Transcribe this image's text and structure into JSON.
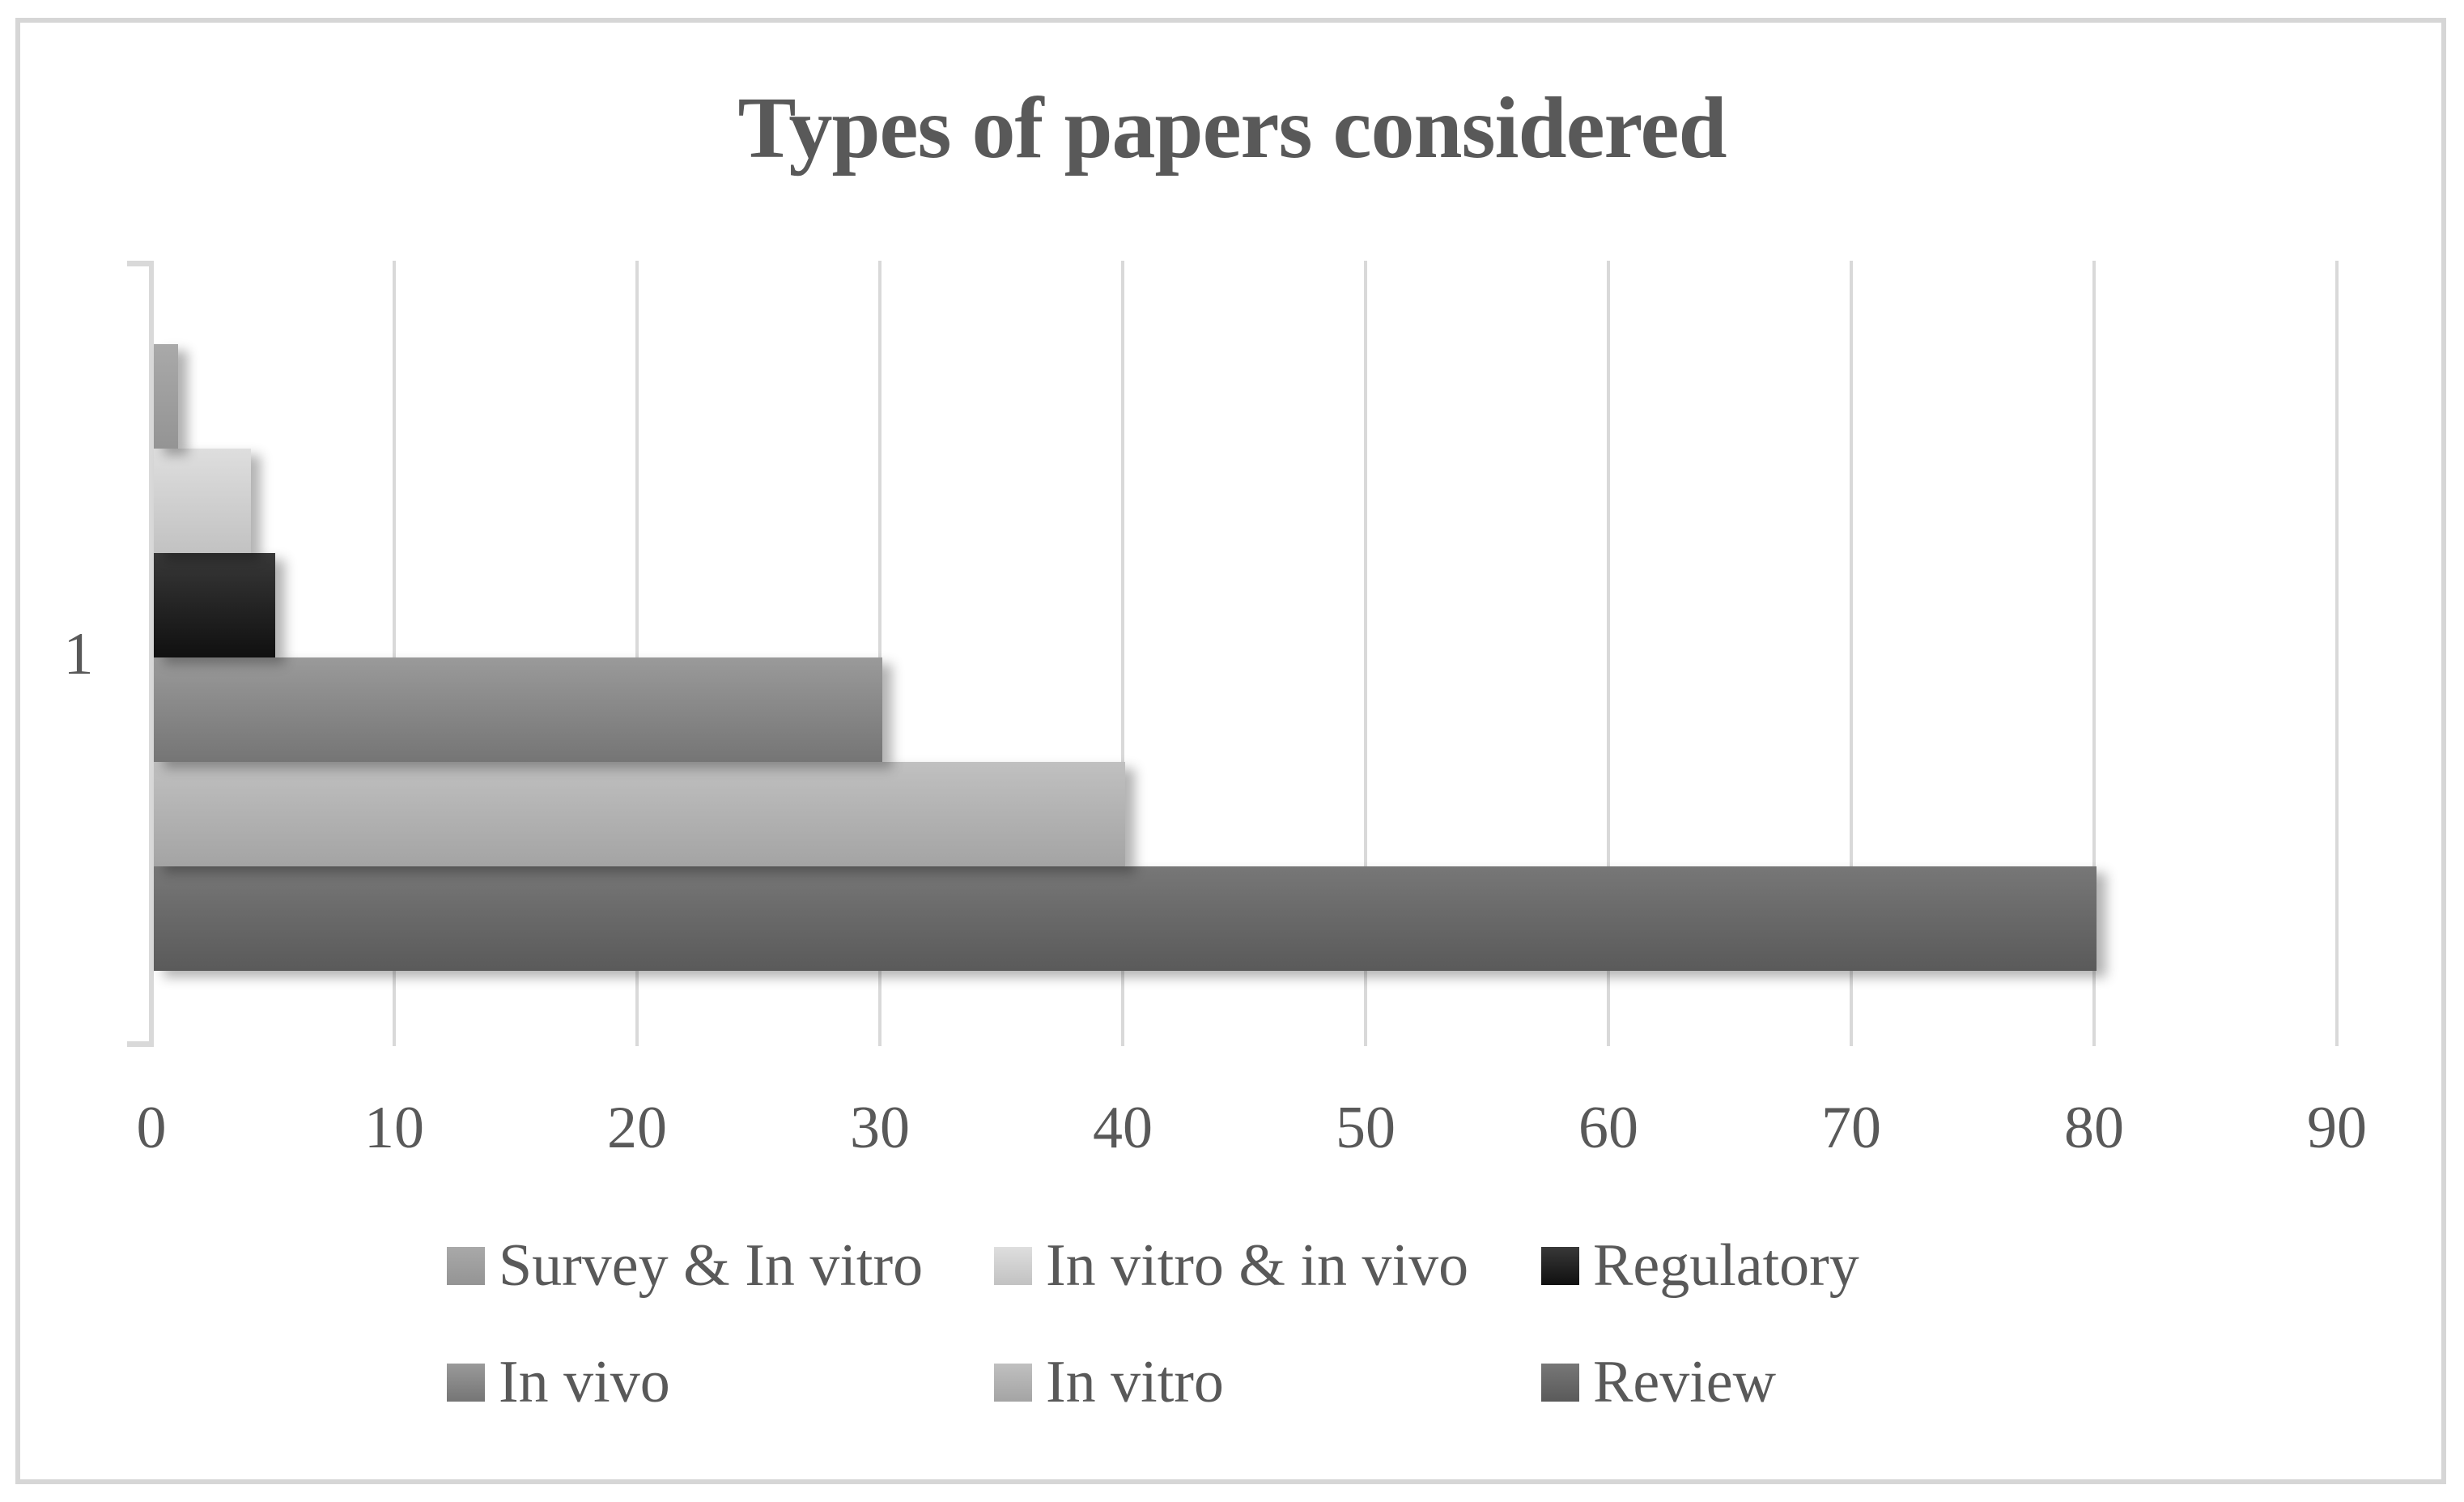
{
  "chart_data": {
    "type": "bar",
    "orientation": "horizontal",
    "title": "Types of papers considered",
    "categories": [
      "1"
    ],
    "series": [
      {
        "name": "Survey & In vitro",
        "value": 1,
        "color_top": "#a9a9a9",
        "color_bottom": "#949494"
      },
      {
        "name": "In vitro & in vivo",
        "value": 4,
        "color_top": "#dedede",
        "color_bottom": "#c2c2c2"
      },
      {
        "name": "Regulatory",
        "value": 5,
        "color_top": "#383838",
        "color_bottom": "#101010"
      },
      {
        "name": "In vivo",
        "value": 30,
        "color_top": "#9a9a9a",
        "color_bottom": "#757575"
      },
      {
        "name": "In vitro",
        "value": 40,
        "color_top": "#c0c0c0",
        "color_bottom": "#a4a4a4"
      },
      {
        "name": "Review",
        "value": 80,
        "color_top": "#777777",
        "color_bottom": "#5a5a5a"
      }
    ],
    "xlabel": "",
    "ylabel": "",
    "xlim": [
      0,
      90
    ],
    "x_ticks": [
      0,
      10,
      20,
      30,
      40,
      50,
      60,
      70,
      80,
      90
    ],
    "grid": "vertical-gridlines-on",
    "legend_position": "bottom",
    "legend_rows": 2
  },
  "colors": {
    "title_text": "#595959",
    "axis_text": "#595959",
    "gridline": "#d9d9d9",
    "frame_border": "#d6d6d6",
    "background": "#ffffff"
  }
}
